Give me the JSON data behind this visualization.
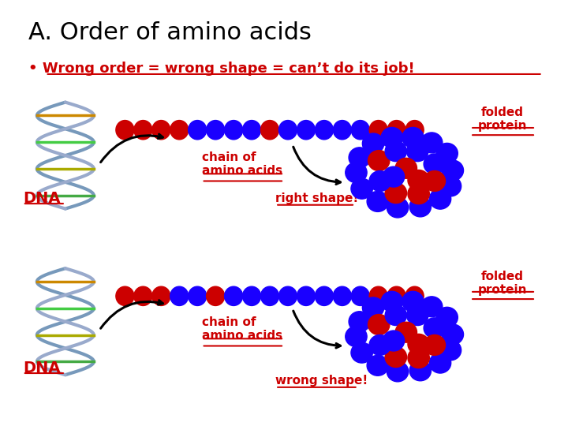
{
  "title": "A. Order of amino acids",
  "bullet": "Wrong order = wrong shape = can’t do its job!",
  "title_color": "#000000",
  "bullet_color": "#cc0000",
  "dna_label": "DNA",
  "chain_label": "chain of\namino acids",
  "folded_label": "folded\nprotein",
  "right_shape_label": "right shape!",
  "wrong_shape_label": "wrong shape!",
  "label_color": "#cc0000",
  "blue": "#1a00ff",
  "red": "#cc0000",
  "row1_beads": [
    "red",
    "red",
    "red",
    "red",
    "blue",
    "blue",
    "blue",
    "blue",
    "red",
    "blue",
    "blue",
    "blue",
    "blue",
    "blue",
    "red",
    "red",
    "red"
  ],
  "row2_beads": [
    "red",
    "red",
    "red",
    "blue",
    "blue",
    "red",
    "blue",
    "blue",
    "blue",
    "blue",
    "blue",
    "blue",
    "blue",
    "blue",
    "red",
    "red",
    "red"
  ]
}
